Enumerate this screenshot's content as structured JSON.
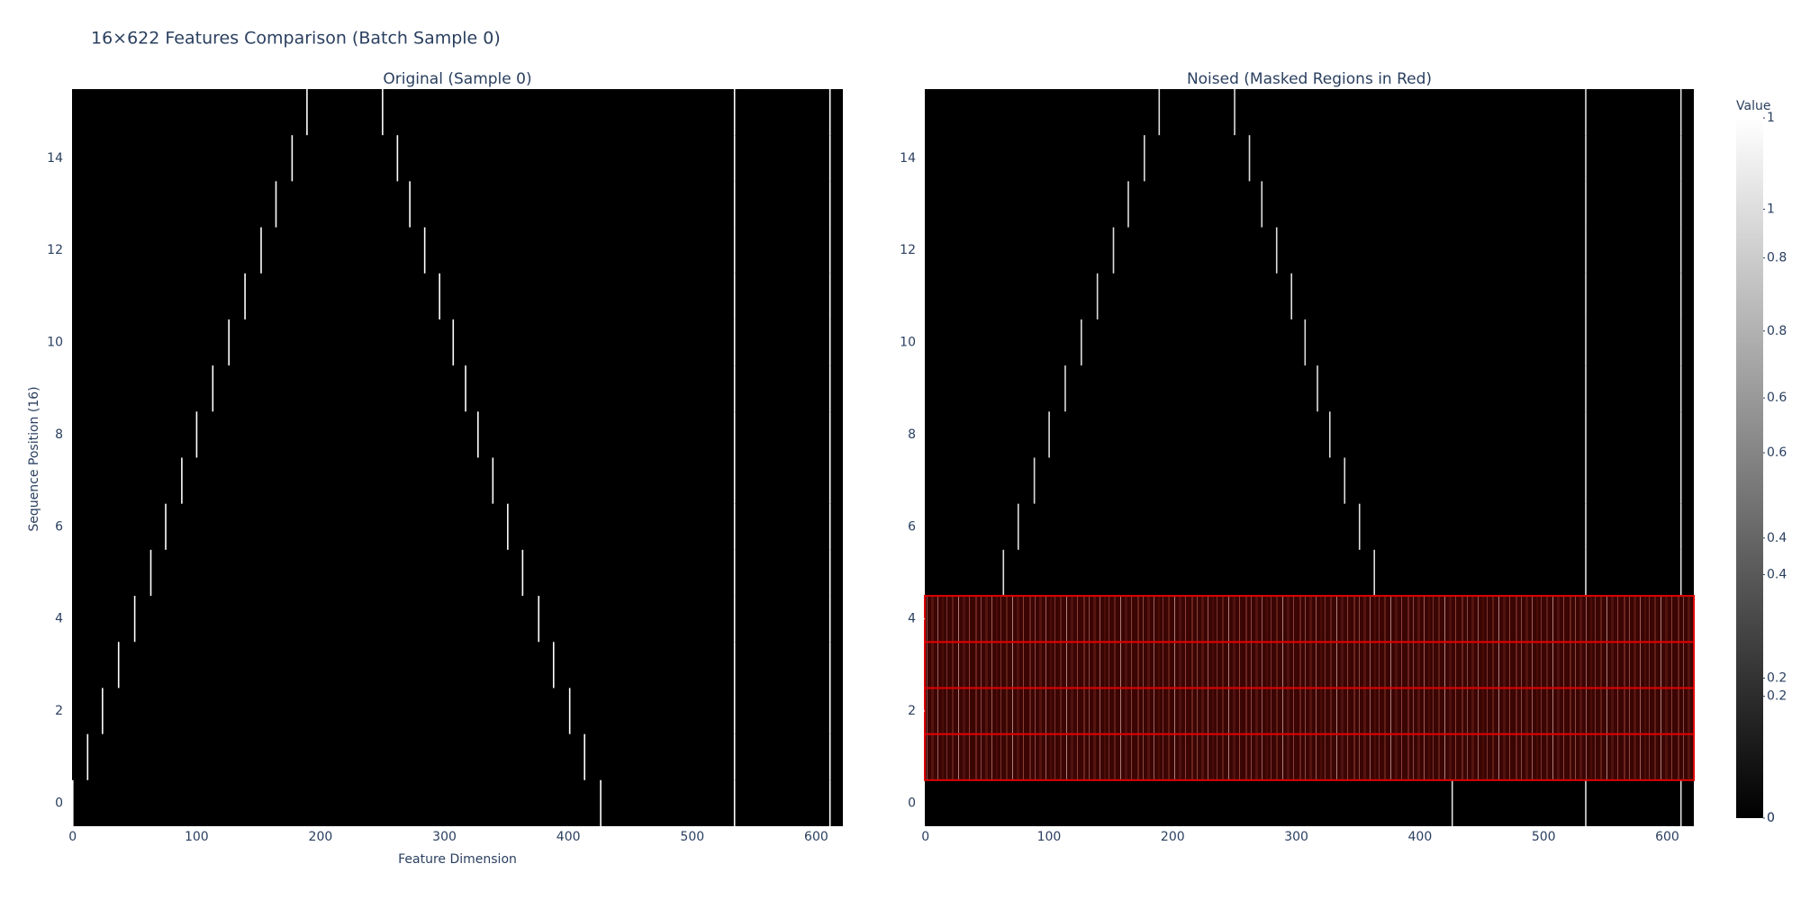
{
  "chart_data": [
    {
      "type": "heatmap",
      "title": "16×622 Features Comparison (Batch Sample 0)",
      "subtitle": "Original (Sample 0)",
      "x_label": "Feature Dimension",
      "y_label": "Sequence Position (16)",
      "xlim": [
        -0.5,
        621.5
      ],
      "ylim": [
        -0.5,
        15.5
      ],
      "xticks": [
        0,
        100,
        200,
        300,
        400,
        500,
        600
      ],
      "yticks": [
        0,
        2,
        4,
        6,
        8,
        10,
        12,
        14
      ],
      "colorbar": {
        "title": "Value",
        "zlim": [
          0,
          1
        ],
        "zticks": [
          0,
          0.2,
          0.4,
          0.6,
          0.8,
          1
        ]
      },
      "bright": {
        "row": [
          0,
          1,
          2,
          3,
          4,
          5,
          6,
          7,
          8,
          9,
          10,
          11,
          12,
          13,
          14,
          15,
          0,
          1,
          2,
          3,
          4,
          5,
          6,
          7,
          8,
          9,
          10,
          11,
          12,
          13,
          14,
          15,
          0,
          1,
          2,
          3,
          4,
          5,
          6,
          7,
          8,
          9,
          10,
          11,
          12,
          13,
          14,
          15,
          0,
          1,
          2,
          3,
          4,
          5,
          6,
          7,
          8,
          9,
          10,
          11,
          12,
          13,
          14,
          15
        ],
        "col": [
          0,
          12,
          24,
          37,
          50,
          63,
          75,
          88,
          100,
          113,
          126,
          139,
          152,
          164,
          177,
          189,
          426,
          413,
          401,
          388,
          376,
          363,
          351,
          339,
          327,
          317,
          307,
          296,
          284,
          272,
          262,
          250,
          534,
          534,
          534,
          534,
          534,
          534,
          534,
          534,
          534,
          534,
          534,
          534,
          534,
          534,
          534,
          534,
          611,
          611,
          611,
          611,
          611,
          611,
          611,
          611,
          611,
          611,
          611,
          611,
          611,
          611,
          611,
          611
        ],
        "value": [
          1,
          1,
          1,
          1,
          1,
          1,
          1,
          1,
          1,
          1,
          1,
          1,
          1,
          1,
          1,
          1,
          1,
          1,
          1,
          1,
          1,
          1,
          1,
          1,
          1,
          1,
          1,
          1,
          1,
          1,
          1,
          1,
          1,
          1,
          1,
          1,
          1,
          1,
          1,
          1,
          1,
          1,
          1,
          1,
          1,
          1,
          1,
          1,
          1,
          1,
          1,
          1,
          1,
          1,
          1,
          1,
          1,
          1,
          1,
          1,
          1,
          1,
          1,
          1
        ]
      }
    },
    {
      "type": "heatmap",
      "subtitle": "Noised (Masked Regions in Red)",
      "xlim": [
        -0.5,
        621.5
      ],
      "ylim": [
        -0.5,
        15.5
      ],
      "xticks": [
        0,
        100,
        200,
        300,
        400,
        500,
        600
      ],
      "yticks": [
        0,
        2,
        4,
        6,
        8,
        10,
        12,
        14
      ],
      "colorbar": {
        "zlim": [
          0,
          1.15
        ],
        "zticks": [
          0,
          0.2,
          0.4,
          0.6,
          0.8,
          1
        ]
      },
      "masked_rows": [
        1,
        2,
        3,
        4
      ],
      "mask_color": "#e00000",
      "bright": {
        "row": [
          5,
          6,
          7,
          8,
          9,
          10,
          11,
          12,
          13,
          14,
          15,
          0,
          5,
          6,
          7,
          8,
          9,
          10,
          11,
          12,
          13,
          14,
          15,
          0,
          5,
          6,
          7,
          8,
          9,
          10,
          11,
          12,
          13,
          14,
          15,
          0,
          5,
          6,
          7,
          8,
          9,
          10,
          11,
          12,
          13,
          14,
          15
        ],
        "col": [
          63,
          75,
          88,
          100,
          113,
          126,
          139,
          152,
          164,
          177,
          189,
          426,
          363,
          351,
          339,
          327,
          317,
          307,
          296,
          284,
          272,
          262,
          250,
          534,
          534,
          534,
          534,
          534,
          534,
          534,
          534,
          534,
          534,
          534,
          534,
          611,
          611,
          611,
          611,
          611,
          611,
          611,
          611,
          611,
          611,
          611,
          611
        ],
        "value": [
          1,
          1,
          1,
          1,
          1,
          1,
          1,
          1,
          1,
          1,
          1,
          1,
          1,
          1,
          1,
          1,
          1,
          1,
          1,
          1,
          1,
          1,
          1,
          1,
          1,
          1,
          1,
          1,
          1,
          1,
          1,
          1,
          1,
          1,
          1,
          1,
          1,
          1,
          1,
          1,
          1,
          1,
          1,
          1,
          1,
          1,
          1
        ]
      }
    }
  ]
}
